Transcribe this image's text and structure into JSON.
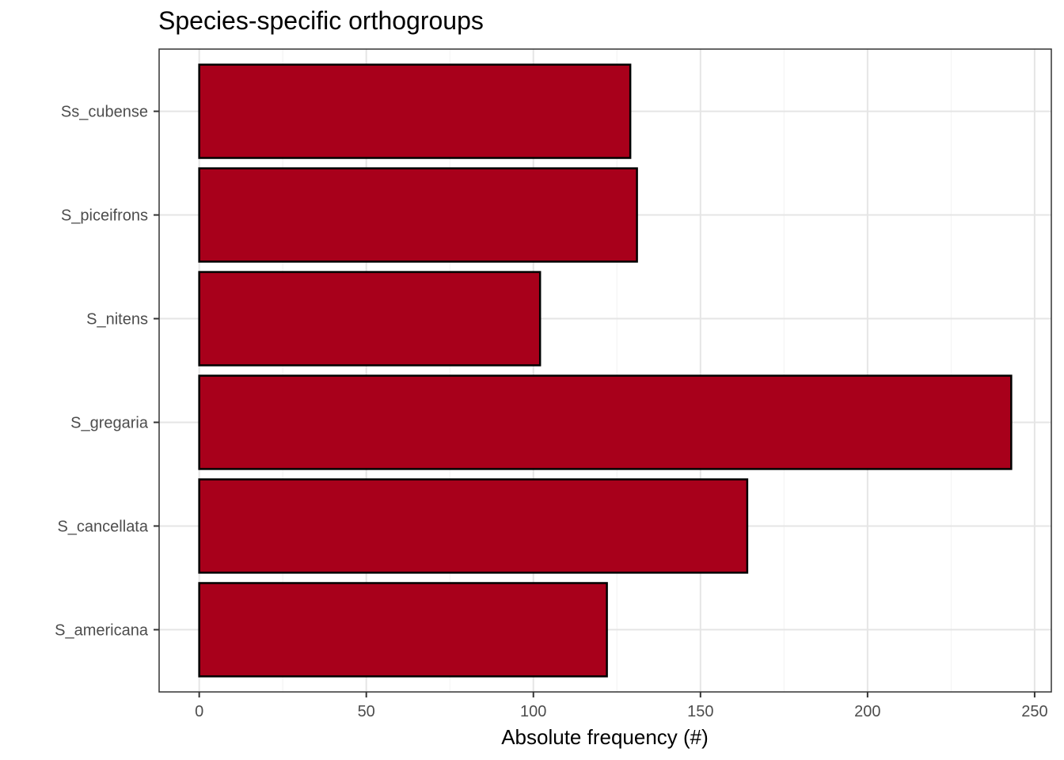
{
  "chart_data": {
    "type": "bar",
    "orientation": "horizontal",
    "title": "Species-specific orthogroups",
    "xlabel": "Absolute frequency (#)",
    "ylabel": "",
    "categories": [
      "Ss_cubense",
      "S_piceifrons",
      "S_nitens",
      "S_gregaria",
      "S_cancellata",
      "S_americana"
    ],
    "values": [
      129,
      131,
      102,
      243,
      164,
      122
    ],
    "xlim": [
      -12,
      255
    ],
    "xticks": [
      0,
      50,
      100,
      150,
      200,
      250
    ],
    "grid": true,
    "legend": "none",
    "colors": {
      "bar_fill": "#a8001b",
      "bar_stroke": "#000000",
      "grid_major": "#e5e5e5",
      "grid_minor": "#f2f2f2",
      "panel_border": "#333333"
    }
  }
}
